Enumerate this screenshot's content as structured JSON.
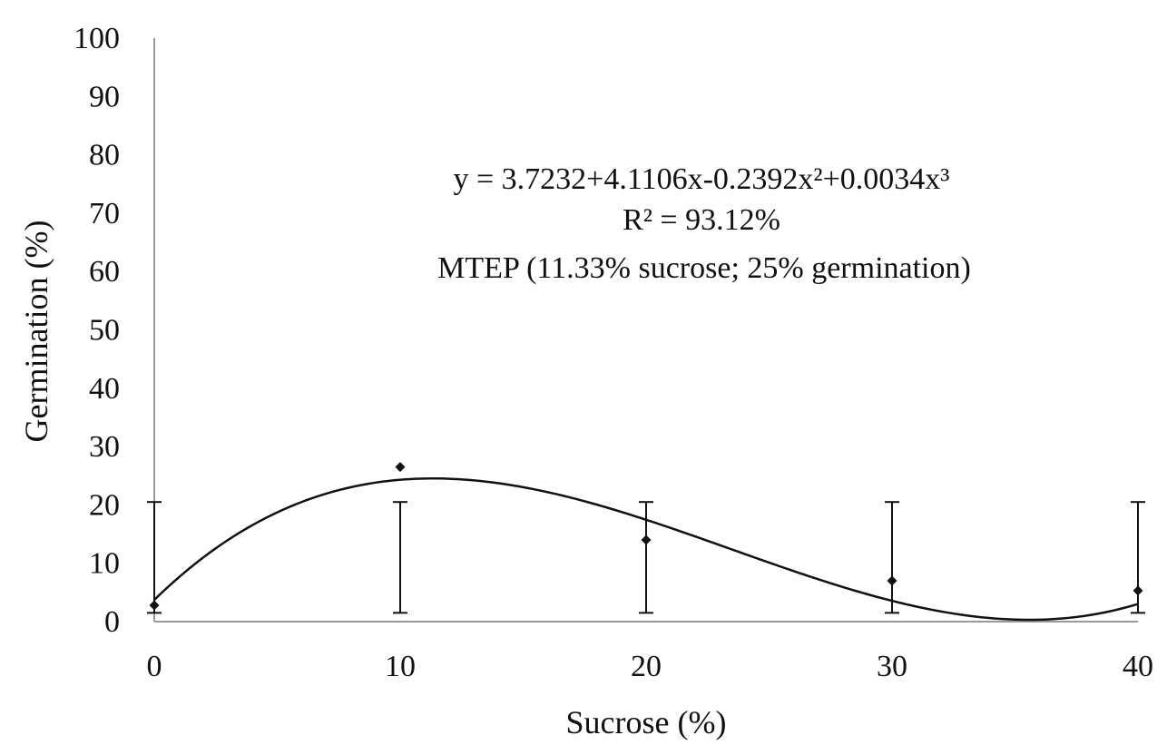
{
  "chart_data": {
    "type": "scatter",
    "title": "",
    "xlabel": "Sucrose (%)",
    "ylabel": "Germination (%)",
    "xlim": [
      0,
      40
    ],
    "ylim": [
      0,
      100
    ],
    "x_ticks": [
      0,
      10,
      20,
      30,
      40
    ],
    "y_ticks": [
      0,
      10,
      20,
      30,
      40,
      50,
      60,
      70,
      80,
      90,
      100
    ],
    "grid": false,
    "legend": "none",
    "points": [
      {
        "x": 0,
        "y": 2.8,
        "err_low": 1.5,
        "err_high": 20.5
      },
      {
        "x": 10,
        "y": 26.5,
        "err_low": 1.5,
        "err_high": 20.5
      },
      {
        "x": 20,
        "y": 14.0,
        "err_low": 1.5,
        "err_high": 20.5
      },
      {
        "x": 30,
        "y": 7.0,
        "err_low": 1.5,
        "err_high": 20.5
      },
      {
        "x": 40,
        "y": 5.3,
        "err_low": 1.5,
        "err_high": 20.5
      }
    ],
    "fit": {
      "model": "cubic",
      "coefficients": [
        3.7232,
        4.1106,
        -0.2392,
        0.0034
      ]
    },
    "annotations": [
      "y = 3.7232+4.1106x-0.2392x²+0.0034x³",
      "R² = 93.12%",
      "MTEP (11.33% sucrose; 25% germination)"
    ],
    "colors": {
      "axis": "#999999",
      "marks": "#111111"
    }
  }
}
